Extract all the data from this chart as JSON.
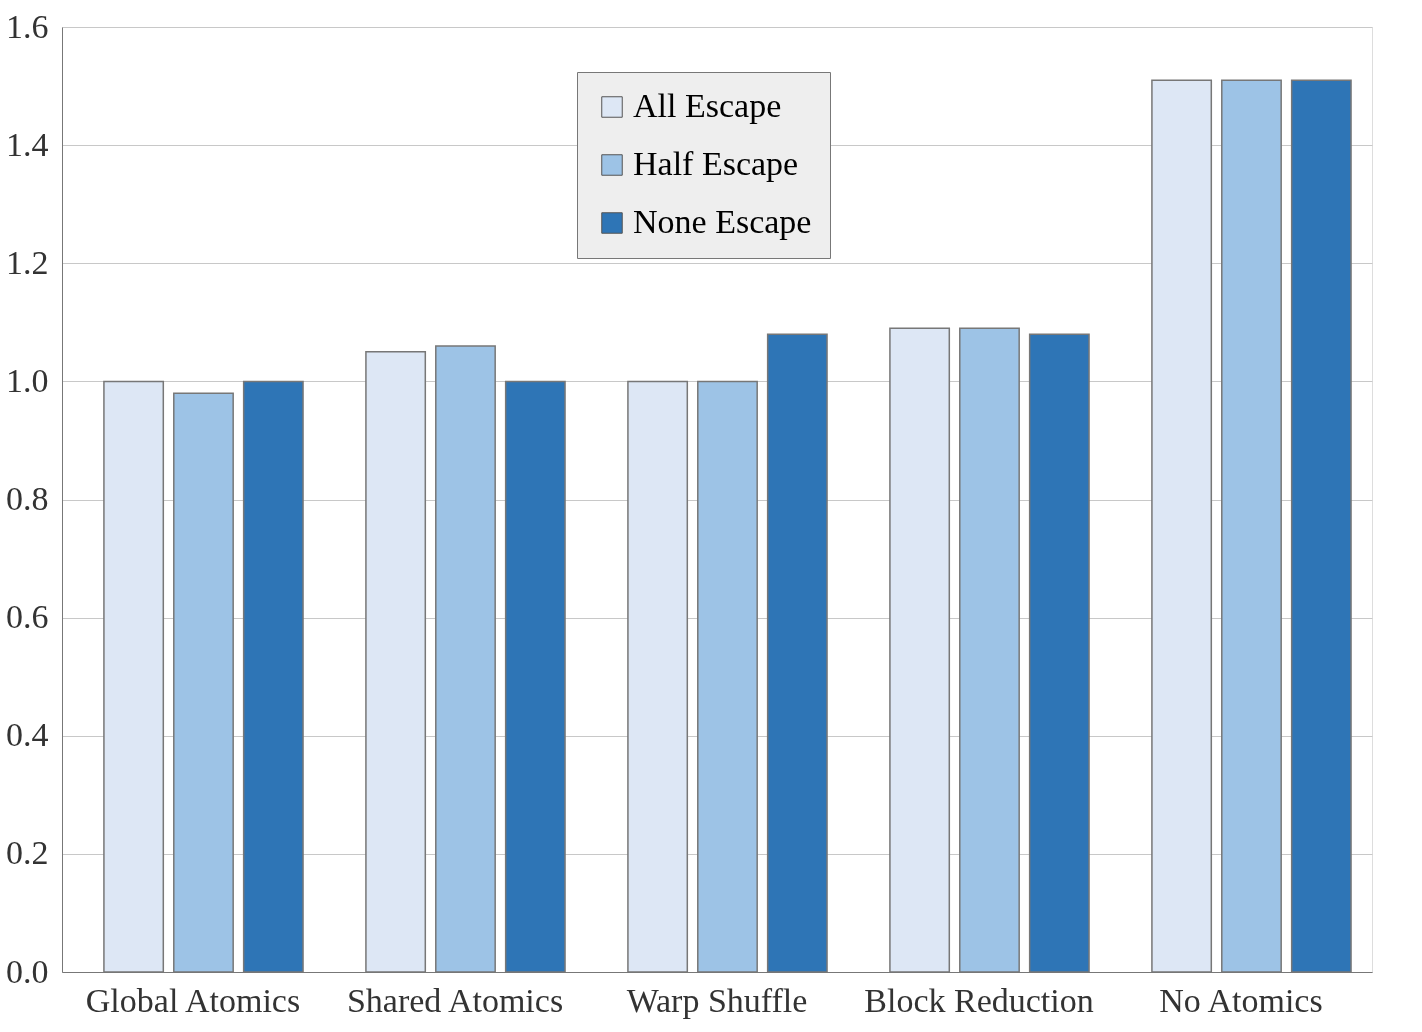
{
  "chart_data": {
    "type": "bar",
    "categories": [
      "Global Atomics",
      "Shared Atomics",
      "Warp Shuffle",
      "Block Reduction",
      "No Atomics"
    ],
    "series": [
      {
        "name": "All Escape",
        "color": "#dde7f5",
        "values": [
          1.0,
          1.05,
          1.0,
          1.09,
          1.51
        ]
      },
      {
        "name": "Half Escape",
        "color": "#9dc3e6",
        "values": [
          0.98,
          1.06,
          1.0,
          1.09,
          1.51
        ]
      },
      {
        "name": "None Escape",
        "color": "#2e75b6",
        "values": [
          1.0,
          1.0,
          1.08,
          1.08,
          1.51
        ]
      }
    ],
    "ylim": [
      0,
      1.6
    ],
    "yticks": [
      {
        "value": 0,
        "label": "0.0"
      },
      0.2,
      0.4,
      0.6,
      0.8,
      {
        "value": 1,
        "label": "1.0"
      },
      1.2,
      1.4,
      1.6
    ],
    "grid": "y",
    "legend": "top"
  }
}
